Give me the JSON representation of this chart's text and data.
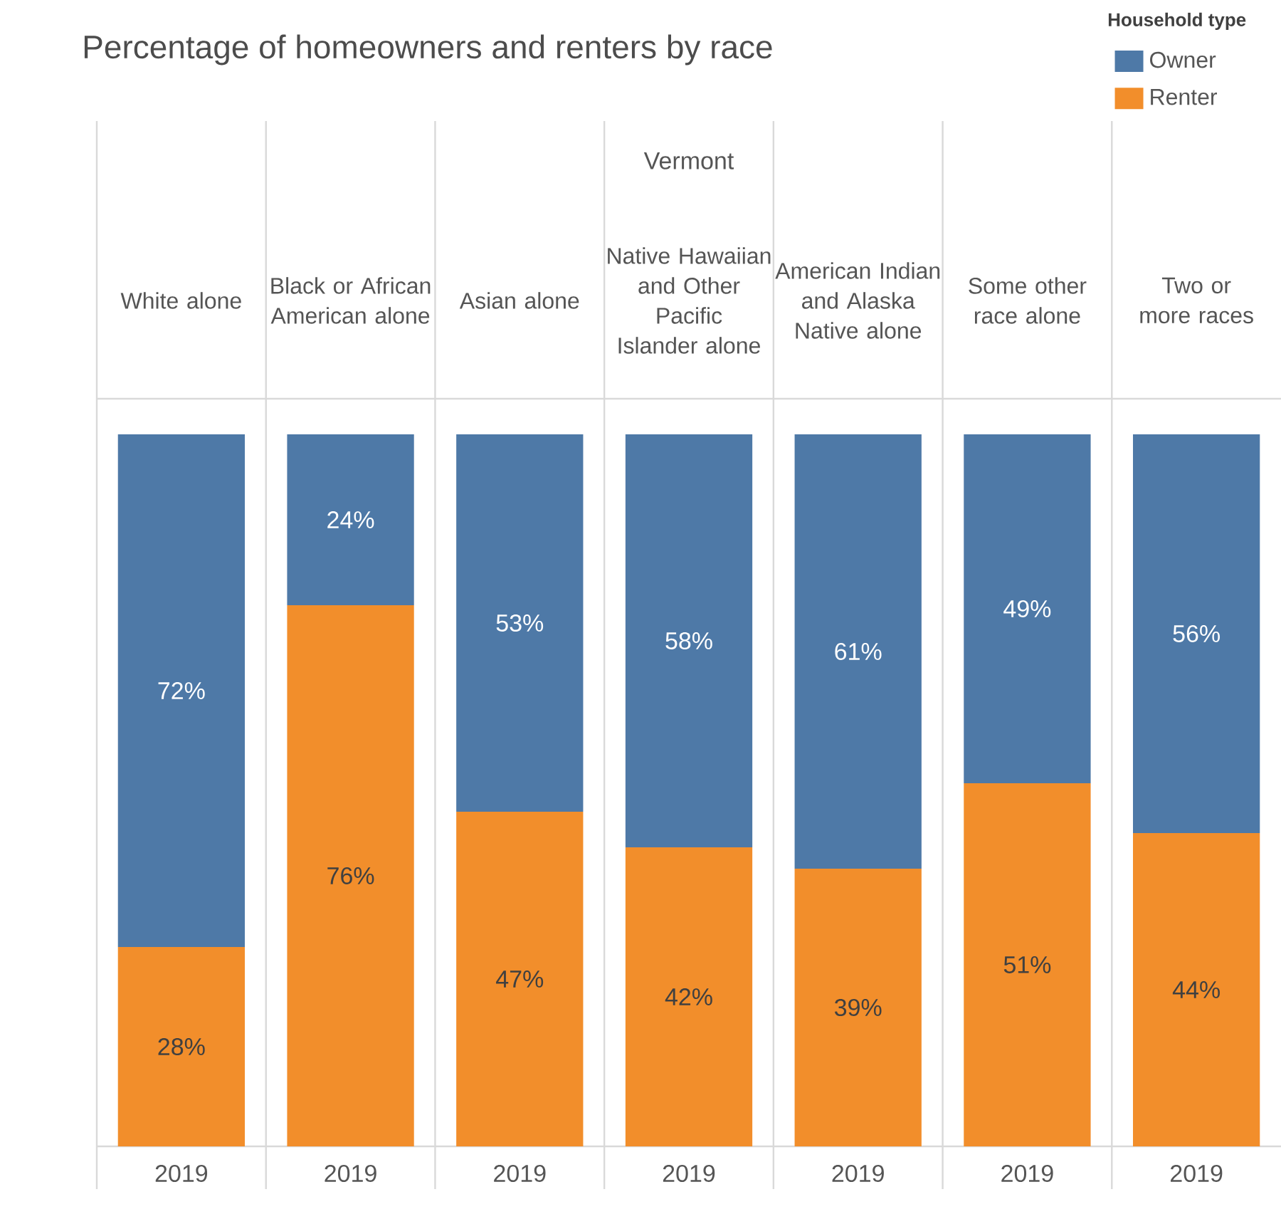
{
  "chart_data": {
    "type": "bar",
    "stacked": true,
    "title": "Percentage of homeowners and renters by race",
    "subtitle": "Vermont",
    "legend_title": "Household type",
    "legend": "top right",
    "tick_labels": "x",
    "categories": [
      "White alone",
      "Black or African American alone",
      "Asian alone",
      "Native Hawaiian and Other Pacific Islander alone",
      "American Indian and Alaska Native alone",
      "Some other race alone",
      "Two or more races"
    ],
    "series": [
      {
        "name": "Renter",
        "color": "#f28e2b",
        "values": [
          28,
          76,
          47,
          42,
          39,
          51,
          44
        ],
        "value_labels": [
          "28%",
          "76%",
          "47%",
          "42%",
          "39%",
          "51%",
          "44%"
        ]
      },
      {
        "name": "Owner",
        "color": "#4e79a7",
        "values": [
          72,
          24,
          53,
          58,
          61,
          49,
          56
        ],
        "value_labels": [
          "72%",
          "24%",
          "53%",
          "58%",
          "61%",
          "49%",
          "56%"
        ]
      }
    ],
    "annotations": [
      "2019",
      "2019",
      "2019",
      "2019",
      "2019",
      "2019",
      "2019"
    ]
  }
}
